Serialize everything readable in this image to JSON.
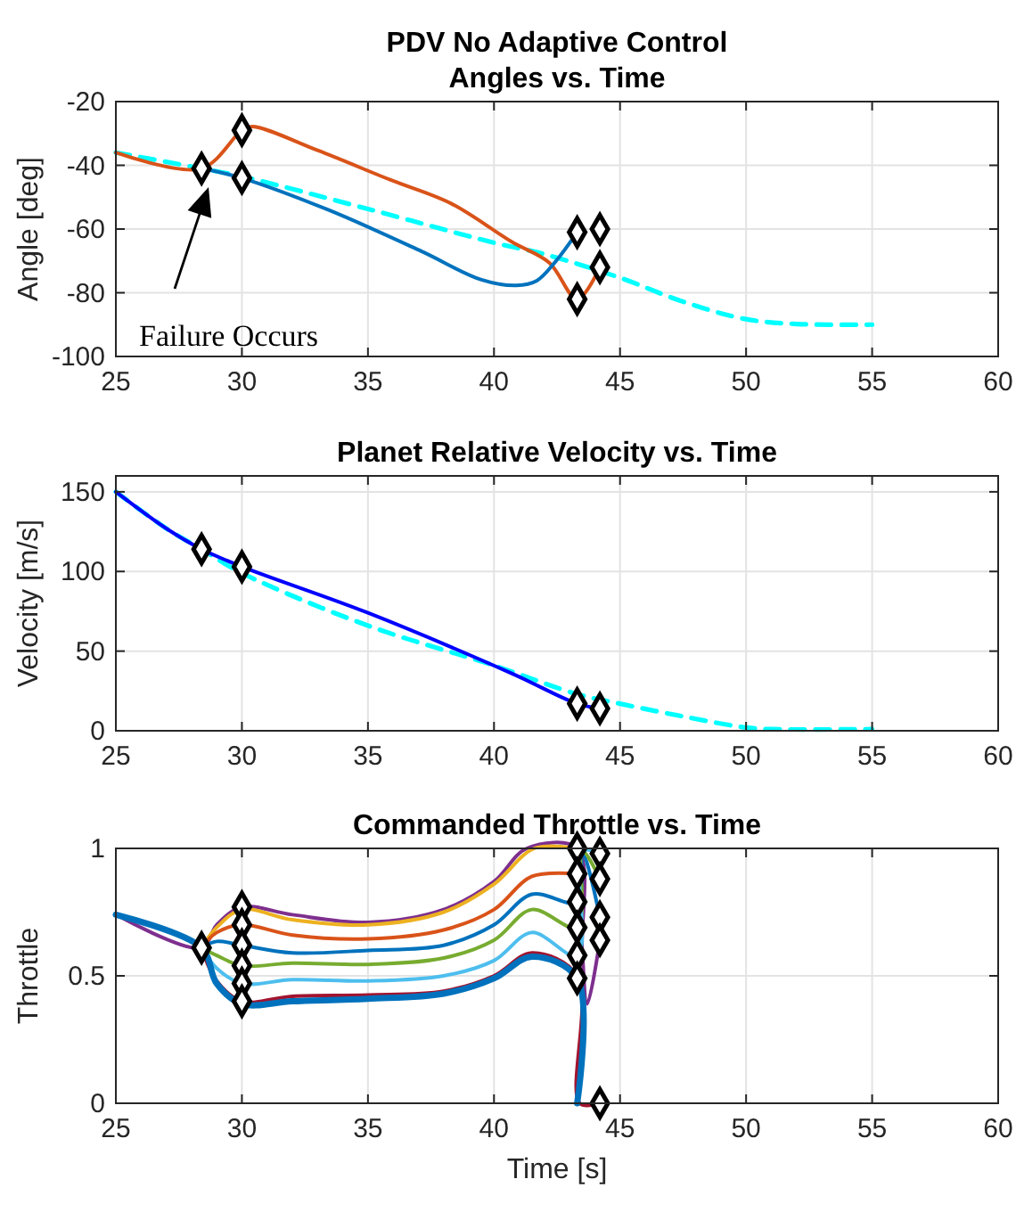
{
  "chart_data": [
    {
      "type": "line",
      "title": "PDV No Adaptive Control",
      "subtitle": "Angles vs. Time",
      "ylabel": "Angle [deg]",
      "xlim": [
        25,
        60
      ],
      "xticks": [
        25,
        30,
        35,
        40,
        45,
        50,
        55,
        60
      ],
      "ylim": [
        -100,
        -20
      ],
      "yticks": [
        -100,
        -80,
        -60,
        -40,
        -20
      ],
      "grid": true,
      "annotations": [
        "Failure Occurs"
      ],
      "series": [
        {
          "color": "#00ffff",
          "line_style": "dashed",
          "x": [
            25,
            28.4,
            30,
            35,
            40,
            42,
            45,
            47.5,
            50,
            52,
            55
          ],
          "values": [
            -36,
            -41,
            -43.5,
            -53.7,
            -64.3,
            -67.9,
            -75.3,
            -82.8,
            -88.3,
            -89.8,
            -90
          ]
        },
        {
          "color": "#d95319",
          "line_style": "solid",
          "x": [
            25,
            28.4,
            30,
            30.4,
            33,
            35.9,
            38.3,
            40.7,
            42.2,
            43.3,
            44.2
          ],
          "values": [
            -36,
            -41,
            -29,
            -27.8,
            -35.3,
            -44.6,
            -52,
            -64,
            -70.6,
            -82,
            -72
          ]
        },
        {
          "color": "#0072bd",
          "line_style": "solid",
          "x": [
            28.4,
            30,
            33.4,
            37.1,
            39.5,
            40.9,
            41.7,
            42.4,
            43.3
          ],
          "values": [
            -41,
            -44,
            -53.9,
            -66.9,
            -75.9,
            -77.7,
            -76.2,
            -70.6,
            -61
          ]
        },
        {
          "type": "scatter",
          "marker": "diamond",
          "color": "#000000",
          "x": [
            28.4,
            30,
            30,
            43.3,
            43.3,
            44.2,
            44.2
          ],
          "values": [
            -41,
            -29,
            -44,
            -61,
            -82,
            -60,
            -72
          ]
        }
      ]
    },
    {
      "type": "line",
      "title": "Planet Relative Velocity vs. Time",
      "ylabel": "Velocity [m/s]",
      "xlim": [
        25,
        60
      ],
      "xticks": [
        25,
        30,
        35,
        40,
        45,
        50,
        55,
        60
      ],
      "ylim": [
        0,
        160
      ],
      "yticks": [
        0,
        50,
        100,
        150
      ],
      "grid": true,
      "series": [
        {
          "color": "#00ffff",
          "line_style": "dashed",
          "x": [
            25,
            27,
            28.4,
            30,
            35,
            40,
            43.3,
            45,
            47.5,
            50,
            51,
            55
          ],
          "values": [
            150,
            127,
            114,
            99,
            66,
            41,
            23,
            17,
            9,
            2,
            1,
            1
          ]
        },
        {
          "color": "#0000ff",
          "line_style": "solid",
          "x": [
            25,
            27,
            28.4,
            30,
            35,
            40.7,
            43.3,
            44.2
          ],
          "values": [
            150,
            127,
            114,
            103,
            74,
            36,
            17,
            14
          ]
        },
        {
          "type": "scatter",
          "marker": "diamond",
          "color": "#000000",
          "x": [
            28.4,
            30,
            43.3,
            44.2
          ],
          "values": [
            114,
            103,
            17,
            14
          ]
        }
      ]
    },
    {
      "type": "line",
      "title": "Commanded Throttle vs. Time",
      "xlabel": "Time [s]",
      "ylabel": "Throttle",
      "xlim": [
        25,
        60
      ],
      "xticks": [
        25,
        30,
        35,
        40,
        45,
        50,
        55,
        60
      ],
      "ylim": [
        0,
        1
      ],
      "yticks": [
        0,
        0.5,
        1
      ],
      "grid": true,
      "series": [
        {
          "color": "#7e2f8e",
          "x": [
            25,
            28.4,
            29,
            30,
            32,
            35,
            38,
            40,
            41.3,
            43.3,
            43.5,
            43.7,
            44.2
          ],
          "values": [
            0.74,
            0.61,
            0.7,
            0.77,
            0.74,
            0.71,
            0.76,
            0.87,
            1,
            1,
            0.6,
            0.39,
            0.64
          ]
        },
        {
          "color": "#edb120",
          "x": [
            28.4,
            29,
            30,
            32,
            35,
            38,
            40,
            41.6,
            43.3
          ],
          "values": [
            0.61,
            0.69,
            0.76,
            0.72,
            0.7,
            0.75,
            0.86,
            1,
            1
          ]
        },
        {
          "color": "#d95319",
          "x": [
            28.4,
            29,
            30,
            32,
            35,
            38,
            40,
            41.5,
            43.3
          ],
          "values": [
            0.61,
            0.67,
            0.7,
            0.66,
            0.645,
            0.68,
            0.76,
            0.89,
            0.9
          ]
        },
        {
          "color": "#0072bd",
          "x": [
            28.4,
            29,
            30,
            32,
            35,
            38,
            40,
            41.5,
            43.3,
            43.5,
            44.2
          ],
          "values": [
            0.61,
            0.635,
            0.62,
            0.59,
            0.6,
            0.62,
            0.7,
            0.82,
            0.79,
            0.99,
            0.73
          ]
        },
        {
          "color": "#77ac30",
          "x": [
            28.4,
            29,
            30,
            32,
            35,
            38,
            40,
            41.5,
            43.3,
            43.5,
            44.2
          ],
          "values": [
            0.61,
            0.58,
            0.54,
            0.55,
            0.545,
            0.57,
            0.64,
            0.76,
            0.69,
            0.99,
            0.88
          ]
        },
        {
          "color": "#4dbeee",
          "x": [
            28.4,
            29,
            30,
            32,
            35,
            38,
            40,
            41.5,
            43.3,
            43.5,
            44.2
          ],
          "values": [
            0.61,
            0.53,
            0.47,
            0.485,
            0.48,
            0.5,
            0.56,
            0.67,
            0.58,
            0.99,
            0.98
          ]
        },
        {
          "color": "#a2142f",
          "x": [
            28.4,
            29,
            30,
            32,
            35,
            38,
            40,
            41.5,
            43.3,
            43.4,
            44.2
          ],
          "values": [
            0.61,
            0.48,
            0.4,
            0.42,
            0.425,
            0.44,
            0.5,
            0.59,
            0.5,
            0,
            0
          ]
        },
        {
          "color": "#0072bd",
          "x": [
            25,
            28.4,
            29,
            30,
            32,
            35,
            38,
            40,
            41.5,
            43.3,
            43.3
          ],
          "values": [
            0.74,
            0.61,
            0.47,
            0.39,
            0.4,
            0.41,
            0.43,
            0.49,
            0.575,
            0.49,
            0
          ]
        },
        {
          "type": "scatter",
          "marker": "diamond",
          "color": "#000000",
          "x": [
            28.4,
            30,
            30,
            30,
            30,
            30,
            30,
            43.3,
            43.3,
            43.3,
            43.3,
            43.3,
            43.3,
            44.2,
            44.2,
            44.2,
            44.2,
            44.2
          ],
          "values": [
            0.61,
            0.77,
            0.7,
            0.62,
            0.54,
            0.47,
            0.4,
            1,
            0.9,
            0.79,
            0.69,
            0.58,
            0.49,
            0.98,
            0.88,
            0.73,
            0.64,
            0
          ]
        }
      ]
    }
  ]
}
